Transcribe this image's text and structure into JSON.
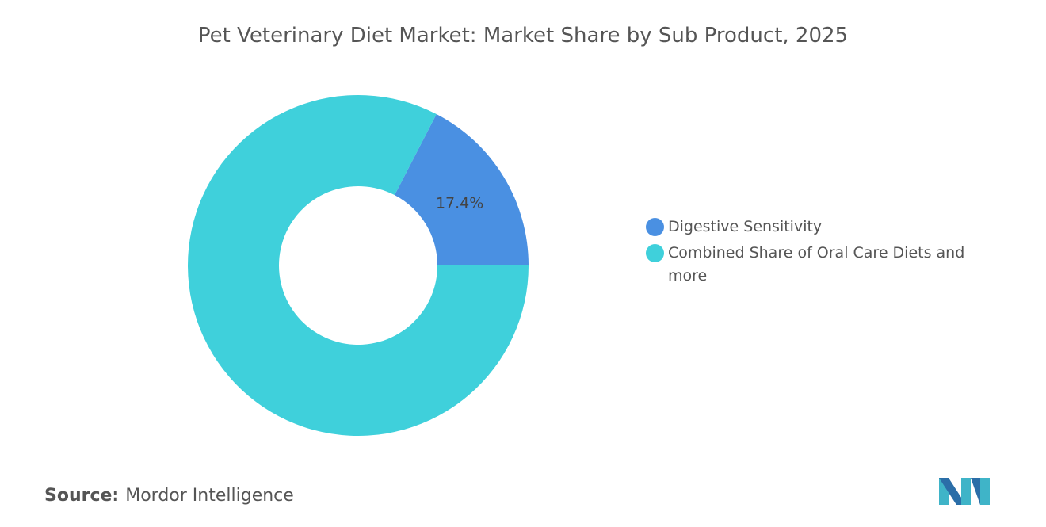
{
  "chart_data": {
    "type": "donut",
    "title": "Pet Veterinary Diet Market: Market Share by Sub Product, 2025",
    "categories": [
      "Digestive Sensitivity",
      "Combined Share of Oral Care Diets and more"
    ],
    "values": [
      17.4,
      82.6
    ],
    "value_labels": [
      "17.4%",
      null
    ],
    "colors": [
      "#4a90e2",
      "#3fd0db"
    ],
    "source_label": "Source:",
    "source": "Mordor Intelligence"
  }
}
